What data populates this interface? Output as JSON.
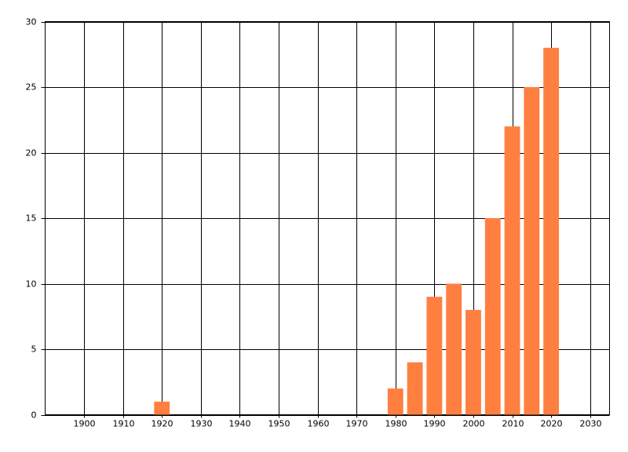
{
  "chart_data": {
    "type": "bar",
    "x": [
      1920,
      1980,
      1985,
      1990,
      1995,
      2000,
      2005,
      2010,
      2015,
      2020
    ],
    "values": [
      1,
      2,
      4,
      9,
      10,
      8,
      15,
      22,
      25,
      28
    ],
    "color": "#ff7f40",
    "xlim": [
      1890,
      2035
    ],
    "xticks": [
      1900,
      1910,
      1920,
      1930,
      1940,
      1950,
      1960,
      1970,
      1980,
      1990,
      2000,
      2010,
      2020,
      2030
    ],
    "ylim": [
      0,
      30
    ],
    "yticks": [
      0,
      5,
      10,
      15,
      20,
      25,
      30
    ],
    "grid": true
  }
}
